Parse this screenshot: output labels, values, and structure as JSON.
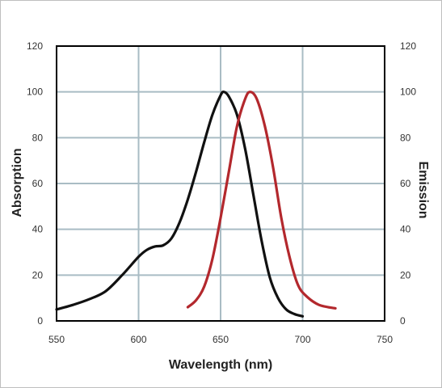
{
  "chart_data": {
    "type": "line",
    "title": "",
    "xlabel": "Wavelength (nm)",
    "ylabel_left": "Absorption",
    "ylabel_right": "Emission",
    "xlim": [
      550,
      750
    ],
    "ylim": [
      0,
      120
    ],
    "x_ticks": [
      550,
      600,
      650,
      700,
      750
    ],
    "y_ticks": [
      0,
      20,
      40,
      60,
      80,
      100,
      120
    ],
    "grid": true,
    "legend": "none",
    "colors": {
      "grid": "#a9bcc4",
      "axis": "#000000"
    },
    "series": [
      {
        "color": "#111111",
        "axis": "left",
        "points": [
          [
            550,
            5
          ],
          [
            560,
            7
          ],
          [
            570,
            9.5
          ],
          [
            580,
            13
          ],
          [
            590,
            20
          ],
          [
            600,
            28
          ],
          [
            605,
            31
          ],
          [
            610,
            32.5
          ],
          [
            615,
            33
          ],
          [
            620,
            36
          ],
          [
            625,
            43
          ],
          [
            630,
            53
          ],
          [
            635,
            65
          ],
          [
            640,
            78
          ],
          [
            645,
            90
          ],
          [
            650,
            98.5
          ],
          [
            652,
            100
          ],
          [
            655,
            98
          ],
          [
            660,
            90
          ],
          [
            665,
            75
          ],
          [
            670,
            55
          ],
          [
            675,
            35
          ],
          [
            680,
            19
          ],
          [
            685,
            10
          ],
          [
            690,
            5
          ],
          [
            695,
            3
          ],
          [
            700,
            2
          ]
        ]
      },
      {
        "color": "#b3282d",
        "axis": "right",
        "points": [
          [
            630,
            6
          ],
          [
            635,
            9
          ],
          [
            640,
            15
          ],
          [
            645,
            27
          ],
          [
            650,
            45
          ],
          [
            655,
            65
          ],
          [
            660,
            85
          ],
          [
            665,
            97
          ],
          [
            668,
            100
          ],
          [
            672,
            97
          ],
          [
            677,
            85
          ],
          [
            682,
            67
          ],
          [
            687,
            45
          ],
          [
            692,
            28
          ],
          [
            697,
            16
          ],
          [
            702,
            11
          ],
          [
            710,
            7
          ],
          [
            720,
            5.5
          ]
        ]
      }
    ]
  }
}
